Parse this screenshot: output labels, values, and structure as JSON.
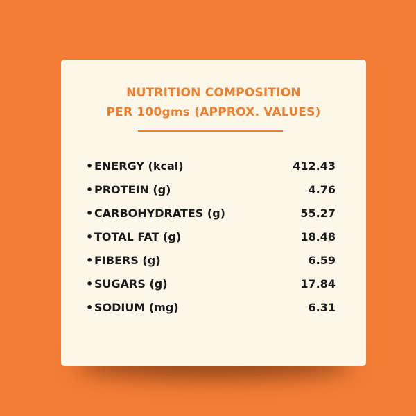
{
  "card": {
    "title_line1": "NUTRITION COMPOSITION",
    "title_line2": "PER 100gms (APPROX. VALUES)"
  },
  "nutrients": [
    {
      "label": "ENERGY (kcal)",
      "value": "412.43"
    },
    {
      "label": "PROTEIN (g)",
      "value": "4.76"
    },
    {
      "label": "CARBOHYDRATES (g)",
      "value": "55.27"
    },
    {
      "label": "TOTAL FAT (g)",
      "value": "18.48"
    },
    {
      "label": "FIBERS (g)",
      "value": "6.59"
    },
    {
      "label": "SUGARS (g)",
      "value": "17.84"
    },
    {
      "label": "SODIUM (mg)",
      "value": "6.31"
    }
  ],
  "colors": {
    "background": "#f47d35",
    "card": "#fdf7ea",
    "accent": "#ef7f2e",
    "text": "#1a1a1a"
  }
}
